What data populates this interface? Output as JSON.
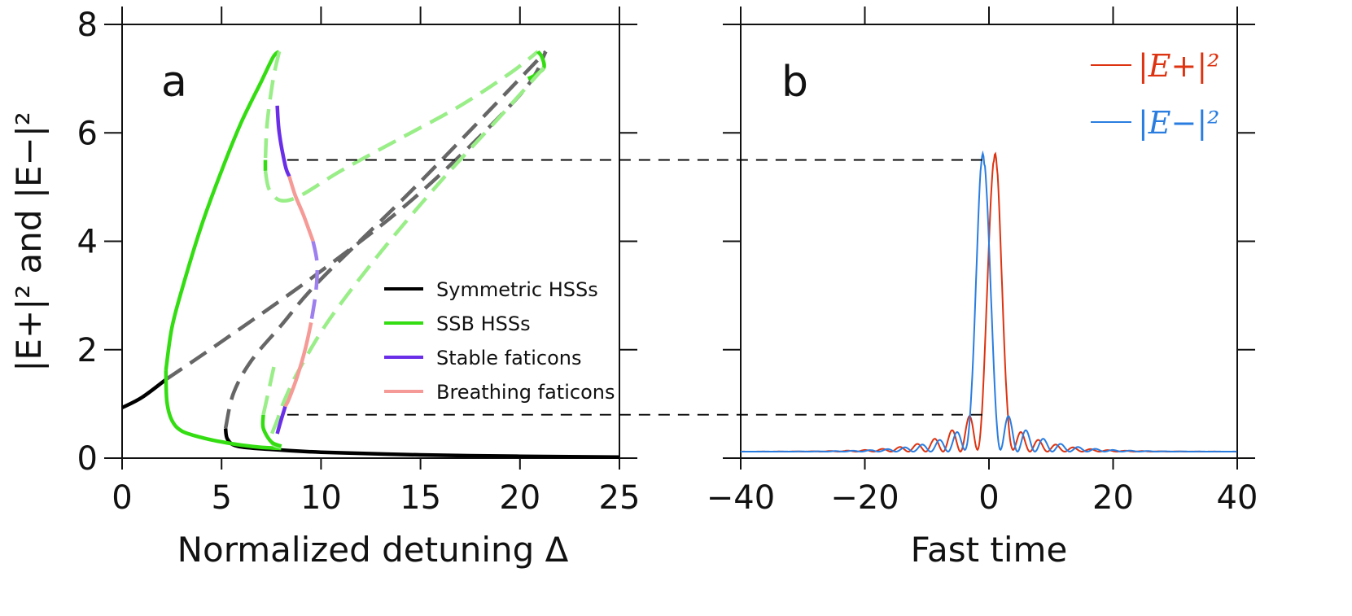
{
  "chart_data": [
    {
      "panel_label": "a",
      "type": "line",
      "xlabel": "Normalized detuning Δ",
      "ylabel": "|E+|² and |E−|²",
      "xlim": [
        0,
        25
      ],
      "ylim": [
        0,
        8
      ],
      "xticks": [
        0,
        5,
        10,
        15,
        20,
        25
      ],
      "yticks": [
        0,
        2,
        4,
        6,
        8
      ],
      "legend_position": "lower-right",
      "legend": [
        {
          "label": "Symmetric HSSs",
          "color": "#000000"
        },
        {
          "label": "SSB HSSs",
          "color": "#33dd11"
        },
        {
          "label": "Stable faticons",
          "color": "#6a2ee8"
        },
        {
          "label": "Breathing faticons",
          "color": "#f59a96"
        }
      ],
      "series": [
        {
          "name": "Symmetric HSSs",
          "role": "stable",
          "color": "#000000",
          "dashed": false,
          "points": [
            [
              0,
              0.93
            ],
            [
              1,
              1.12
            ],
            [
              2.2,
              1.45
            ]
          ]
        },
        {
          "name": "Symmetric HSSs",
          "role": "stable",
          "color": "#000000",
          "dashed": false,
          "points": [
            [
              5.2,
              0.55
            ],
            [
              5.3,
              0.35
            ],
            [
              5.8,
              0.22
            ],
            [
              7.5,
              0.16
            ],
            [
              10,
              0.11
            ],
            [
              15,
              0.06
            ],
            [
              20,
              0.035
            ],
            [
              25,
              0.02
            ]
          ]
        },
        {
          "name": "Symmetric HSSs",
          "role": "unstable",
          "color": "#666666",
          "dashed": true,
          "points": [
            [
              2.2,
              1.45
            ],
            [
              5,
              2.15
            ],
            [
              10,
              3.45
            ],
            [
              15,
              4.9
            ],
            [
              20,
              6.7
            ],
            [
              21.3,
              7.5
            ]
          ]
        },
        {
          "name": "Symmetric HSSs",
          "role": "unstable",
          "color": "#666666",
          "dashed": true,
          "points": [
            [
              5.2,
              0.55
            ],
            [
              5.6,
              1.2
            ],
            [
              6.5,
              1.8
            ],
            [
              8,
              2.45
            ],
            [
              10,
              3.3
            ],
            [
              15,
              5.1
            ],
            [
              21.3,
              7.5
            ]
          ]
        },
        {
          "name": "SSB HSSs",
          "role": "stable",
          "color": "#33dd11",
          "dashed": false,
          "points": [
            [
              2.2,
              1.62
            ],
            [
              2.5,
              2.4
            ],
            [
              3,
              3.1
            ],
            [
              4,
              4.3
            ],
            [
              5,
              5.3
            ],
            [
              6,
              6.2
            ],
            [
              7,
              6.95
            ],
            [
              7.6,
              7.4
            ],
            [
              7.9,
              7.5
            ]
          ]
        },
        {
          "name": "SSB HSSs",
          "role": "stable",
          "color": "#33dd11",
          "dashed": false,
          "points": [
            [
              2.2,
              1.62
            ],
            [
              2.25,
              1.05
            ],
            [
              2.5,
              0.7
            ],
            [
              3,
              0.5
            ],
            [
              4,
              0.38
            ],
            [
              5,
              0.3
            ],
            [
              6,
              0.24
            ],
            [
              7,
              0.2
            ],
            [
              8,
              0.18
            ]
          ]
        },
        {
          "name": "SSB HSSs",
          "role": "unstable",
          "color": "#99ee88",
          "dashed": true,
          "points": [
            [
              7.9,
              7.5
            ],
            [
              7.6,
              7.0
            ],
            [
              7.3,
              6.2
            ],
            [
              7.2,
              5.5
            ]
          ]
        },
        {
          "name": "SSB HSSs",
          "role": "stable",
          "color": "#33dd11",
          "dashed": false,
          "points": [
            [
              7.2,
              5.5
            ],
            [
              7.2,
              5.3
            ]
          ]
        },
        {
          "name": "SSB HSSs",
          "role": "unstable",
          "color": "#99ee88",
          "dashed": true,
          "points": [
            [
              7.2,
              5.3
            ],
            [
              7.4,
              4.95
            ],
            [
              8,
              4.75
            ],
            [
              9,
              4.85
            ],
            [
              11,
              5.3
            ],
            [
              14,
              5.9
            ],
            [
              17,
              6.5
            ],
            [
              19.5,
              7.1
            ],
            [
              20.9,
              7.5
            ]
          ]
        },
        {
          "name": "SSB HSSs",
          "role": "stable",
          "color": "#33dd11",
          "dashed": false,
          "points": [
            [
              20.9,
              7.5
            ],
            [
              21.1,
              7.4
            ],
            [
              21.2,
              7.2
            ],
            [
              20.7,
              7.05
            ],
            [
              20.4,
              7.0
            ]
          ]
        },
        {
          "name": "SSB HSSs",
          "role": "unstable",
          "color": "#99ee88",
          "dashed": true,
          "points": [
            [
              21.2,
              7.2
            ],
            [
              19,
              6.3
            ],
            [
              16,
              5.1
            ],
            [
              13,
              3.8
            ],
            [
              10.5,
              2.6
            ],
            [
              9,
              1.7
            ],
            [
              8.2,
              1.1
            ],
            [
              7.8,
              0.7
            ],
            [
              7.5,
              0.4
            ],
            [
              7.6,
              0.25
            ],
            [
              8,
              0.2
            ]
          ]
        },
        {
          "name": "SSB HSSs",
          "role": "stable",
          "color": "#33dd11",
          "dashed": false,
          "points": [
            [
              7.1,
              0.8
            ],
            [
              7.1,
              0.55
            ],
            [
              7.5,
              0.3
            ],
            [
              8,
              0.22
            ]
          ]
        },
        {
          "name": "SSB HSSs",
          "role": "unstable",
          "color": "#99ee88",
          "dashed": true,
          "points": [
            [
              7.1,
              0.8
            ],
            [
              7.4,
              1.3
            ],
            [
              7.7,
              1.8
            ]
          ]
        },
        {
          "name": "Stable faticons",
          "role": "stable",
          "color": "#6a2ee8",
          "dashed": false,
          "points": [
            [
              7.8,
              6.5
            ],
            [
              7.9,
              6.0
            ],
            [
              8.2,
              5.4
            ],
            [
              8.4,
              5.2
            ]
          ]
        },
        {
          "name": "Breathing faticons",
          "role": "breathing",
          "color": "#f59a96",
          "dashed": false,
          "points": [
            [
              8.4,
              5.2
            ],
            [
              8.7,
              4.85
            ],
            [
              9.1,
              4.5
            ],
            [
              9.5,
              4.1
            ],
            [
              9.6,
              4.0
            ]
          ]
        },
        {
          "name": "Stable faticons",
          "role": "unstable",
          "color": "#9d7fee",
          "dashed": true,
          "points": [
            [
              9.6,
              4.0
            ],
            [
              9.8,
              3.6
            ],
            [
              9.75,
              3.1
            ],
            [
              9.5,
              2.5
            ]
          ]
        },
        {
          "name": "Breathing faticons",
          "role": "breathing",
          "color": "#f59a96",
          "dashed": false,
          "points": [
            [
              9.5,
              2.5
            ],
            [
              9.2,
              2.0
            ],
            [
              8.8,
              1.5
            ],
            [
              8.4,
              1.1
            ],
            [
              8.2,
              0.95
            ]
          ]
        },
        {
          "name": "Stable faticons",
          "role": "stable",
          "color": "#6a2ee8",
          "dashed": false,
          "points": [
            [
              8.2,
              0.95
            ],
            [
              7.95,
              0.65
            ],
            [
              7.8,
              0.45
            ]
          ]
        }
      ],
      "reference_lines": [
        {
          "y": 5.5,
          "x_from": 8.3,
          "style": "dashed",
          "color": "#000000"
        },
        {
          "y": 0.8,
          "x_from": 8.3,
          "style": "dashed",
          "color": "#000000"
        }
      ]
    },
    {
      "panel_label": "b",
      "type": "line",
      "xlabel": "Fast time",
      "xlim": [
        -40,
        40
      ],
      "ylim": [
        0,
        8
      ],
      "xticks": [
        -40,
        -20,
        0,
        20,
        40
      ],
      "yticks": [
        0,
        2,
        4,
        6,
        8
      ],
      "legend_position": "top-right",
      "legend": [
        {
          "label": "|E+|²",
          "color": "#dd3311"
        },
        {
          "label": "|E−|²",
          "color": "#2a7de0"
        }
      ],
      "series": [
        {
          "name": "|E+|²",
          "color": "#dd3311",
          "center": 1.0,
          "peak": 5.5,
          "dip": 0.8,
          "background": 0.12
        },
        {
          "name": "|E−|²",
          "color": "#2a7de0",
          "center": -1.0,
          "peak": 5.5,
          "dip": 0.8,
          "background": 0.12
        }
      ],
      "reference_lines": [
        {
          "y": 5.5,
          "style": "dashed",
          "color": "#000000"
        },
        {
          "y": 0.8,
          "style": "dashed",
          "color": "#000000"
        }
      ]
    }
  ]
}
